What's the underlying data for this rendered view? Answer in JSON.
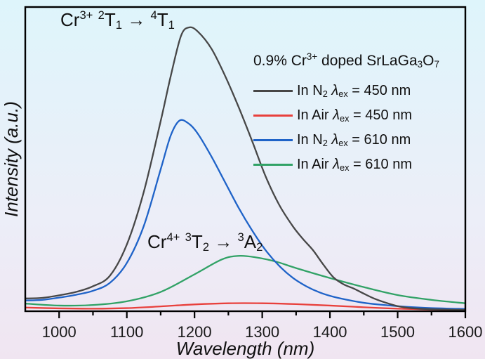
{
  "figure": {
    "bg_top": "#def5fb",
    "bg_mid": "#eceef8",
    "bg_bottom": "#f0e5f1",
    "frame_color": "#000000"
  },
  "axes": {
    "x_label": "Wavelength (nm)",
    "y_label": "Intensity (a.u.)",
    "x_min": 950,
    "x_max": 1600,
    "x_major_ticks": [
      1000,
      1100,
      1200,
      1300,
      1400,
      1500,
      1600
    ],
    "x_minor_ticks": [
      1050,
      1150,
      1250,
      1350,
      1450,
      1550
    ],
    "tick_label_color": "#1a1a1a"
  },
  "annotations": [
    {
      "name": "cr3-transition",
      "text": "Cr3+ 2T1 -> 4T1",
      "segments": [
        {
          "t": "Cr"
        },
        {
          "t": "3+",
          "sup": true
        },
        {
          "t": " "
        },
        {
          "t": "2",
          "sup": true
        },
        {
          "t": "T"
        },
        {
          "t": "1",
          "sub": true
        },
        {
          "t": " → "
        },
        {
          "t": "4",
          "sup": true
        },
        {
          "t": "T"
        },
        {
          "t": "1",
          "sub": true
        }
      ]
    },
    {
      "name": "cr4-transition",
      "text": "Cr4+ 3T2 -> 3A2",
      "segments": [
        {
          "t": "Cr"
        },
        {
          "t": "4+",
          "sup": true
        },
        {
          "t": " "
        },
        {
          "t": "3",
          "sup": true
        },
        {
          "t": "T"
        },
        {
          "t": "2",
          "sub": true
        },
        {
          "t": " → "
        },
        {
          "t": "3",
          "sup": true
        },
        {
          "t": "A"
        },
        {
          "t": "2",
          "sub": true
        }
      ]
    }
  ],
  "legend": {
    "title_text": "0.9% Cr3+ doped SrLaGa3O7",
    "title_segments": [
      {
        "t": "0.9% Cr"
      },
      {
        "t": "3+",
        "sup": true
      },
      {
        "t": " doped SrLaGa"
      },
      {
        "t": "3",
        "sub": true
      },
      {
        "t": "O"
      },
      {
        "t": "7",
        "sub": true
      }
    ],
    "entries": [
      {
        "id": "in-n2-450",
        "color": "#474747",
        "segments": [
          {
            "t": "In N"
          },
          {
            "t": "2",
            "sub": true
          },
          {
            "t": "  "
          },
          {
            "t": "λ",
            "italic": true
          },
          {
            "t": "ex",
            "sub": true
          },
          {
            "t": " = 450 nm"
          }
        ]
      },
      {
        "id": "in-air-450",
        "color": "#e8403c",
        "segments": [
          {
            "t": "In Air  "
          },
          {
            "t": "λ",
            "italic": true
          },
          {
            "t": "ex",
            "sub": true
          },
          {
            "t": " = 450 nm"
          }
        ]
      },
      {
        "id": "in-n2-610",
        "color": "#1f63c8",
        "segments": [
          {
            "t": "In N"
          },
          {
            "t": "2",
            "sub": true
          },
          {
            "t": "  "
          },
          {
            "t": "λ",
            "italic": true
          },
          {
            "t": "ex",
            "sub": true
          },
          {
            "t": " = 610 nm"
          }
        ]
      },
      {
        "id": "in-air-610",
        "color": "#31a266",
        "segments": [
          {
            "t": "In Air  "
          },
          {
            "t": "λ",
            "italic": true
          },
          {
            "t": "ex",
            "sub": true
          },
          {
            "t": " = 610 nm"
          }
        ]
      }
    ]
  },
  "chart_data": {
    "type": "line",
    "title": "0.9% Cr3+ doped SrLaGa3O7",
    "xlabel": "Wavelength (nm)",
    "ylabel": "Intensity (a.u.)",
    "xlim": [
      950,
      1600
    ],
    "ylim": [
      0,
      1.07
    ],
    "grid": false,
    "legend_position": "upper right",
    "x_major_ticks": [
      1000,
      1100,
      1200,
      1300,
      1400,
      1500,
      1600
    ],
    "x_minor_ticks": [
      1050,
      1150,
      1250,
      1350,
      1450,
      1550
    ],
    "series": [
      {
        "id": "in-air-450",
        "name": "In Air λex = 450 nm",
        "color": "#e8403c",
        "x": [
          950,
          1000,
          1050,
          1100,
          1150,
          1200,
          1250,
          1300,
          1350,
          1400,
          1450,
          1500,
          1550,
          1600
        ],
        "y": [
          0.013,
          0.01,
          0.009,
          0.011,
          0.017,
          0.024,
          0.028,
          0.028,
          0.025,
          0.02,
          0.014,
          0.009,
          0.006,
          0.004
        ]
      },
      {
        "id": "in-air-610",
        "name": "In Air λex = 610 nm",
        "color": "#31a266",
        "x": [
          950,
          1000,
          1050,
          1100,
          1150,
          1200,
          1240,
          1265,
          1290,
          1320,
          1350,
          1400,
          1450,
          1500,
          1550,
          1600
        ],
        "y": [
          0.027,
          0.02,
          0.022,
          0.035,
          0.068,
          0.13,
          0.182,
          0.195,
          0.19,
          0.175,
          0.152,
          0.117,
          0.085,
          0.057,
          0.04,
          0.028
        ]
      },
      {
        "id": "in-n2-610",
        "name": "In N2 λex = 610 nm",
        "color": "#1f63c8",
        "x": [
          950,
          975,
          1000,
          1025,
          1050,
          1075,
          1100,
          1125,
          1150,
          1165,
          1178,
          1192,
          1205,
          1225,
          1245,
          1265,
          1285,
          1305,
          1325,
          1345,
          1365,
          1385,
          1405,
          1430,
          1455,
          1480,
          1510,
          1550,
          1600
        ],
        "y": [
          0.038,
          0.04,
          0.048,
          0.058,
          0.072,
          0.1,
          0.17,
          0.3,
          0.5,
          0.62,
          0.672,
          0.66,
          0.625,
          0.545,
          0.455,
          0.365,
          0.285,
          0.215,
          0.16,
          0.118,
          0.088,
          0.066,
          0.051,
          0.038,
          0.028,
          0.022,
          0.016,
          0.011,
          0.008
        ]
      },
      {
        "id": "in-n2-450",
        "name": "In N2 λex = 450 nm",
        "color": "#474747",
        "x": [
          950,
          975,
          1000,
          1025,
          1050,
          1075,
          1100,
          1125,
          1150,
          1165,
          1180,
          1192,
          1205,
          1225,
          1245,
          1265,
          1285,
          1305,
          1325,
          1345,
          1360,
          1375,
          1390,
          1405,
          1420,
          1435,
          1450,
          1465,
          1480,
          1500,
          1520,
          1550,
          1600
        ],
        "y": [
          0.045,
          0.047,
          0.056,
          0.068,
          0.088,
          0.125,
          0.235,
          0.42,
          0.67,
          0.83,
          0.97,
          1.0,
          0.985,
          0.925,
          0.83,
          0.72,
          0.6,
          0.475,
          0.375,
          0.3,
          0.255,
          0.215,
          0.165,
          0.12,
          0.095,
          0.08,
          0.062,
          0.045,
          0.032,
          0.018,
          0.011,
          0.007,
          0.005
        ]
      }
    ]
  }
}
